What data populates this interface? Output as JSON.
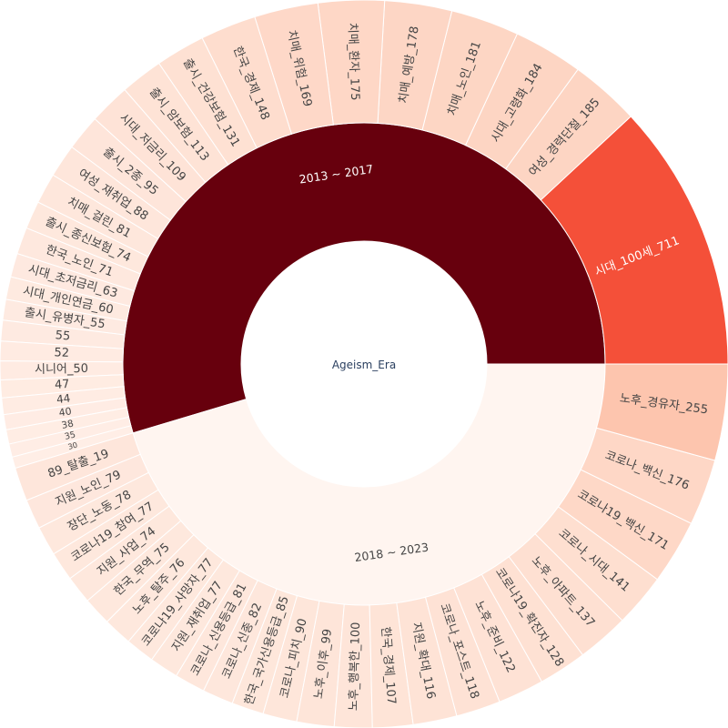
{
  "chart_data": {
    "type": "sunburst",
    "root_label": "Ageism_Era",
    "colorscale": [
      "#fff5f0",
      "#fee0d2",
      "#fcbba1",
      "#fc9272",
      "#fb6a4a",
      "#ef3b2c",
      "#cb181d",
      "#a50f15",
      "#67000d"
    ],
    "groups": [
      {
        "label": "2013 ~ 2017",
        "color": "#67000d",
        "text_color": "#ffffff",
        "children": [
          {
            "label": "시대_100세_711",
            "value": 711
          },
          {
            "label": "여성_경력단절_185",
            "value": 185
          },
          {
            "label": "시대_고령화_184",
            "value": 184
          },
          {
            "label": "치매_노인_181",
            "value": 181
          },
          {
            "label": "치매_예방_178",
            "value": 178
          },
          {
            "label": "치매_환자_175",
            "value": 175
          },
          {
            "label": "치매_위험_169",
            "value": 169
          },
          {
            "label": "한국_경제_148",
            "value": 148
          },
          {
            "label": "출시_건강보험_131",
            "value": 131
          },
          {
            "label": "출시_암보험_113",
            "value": 113
          },
          {
            "label": "시대_저금리_109",
            "value": 109
          },
          {
            "label": "출시_2종_95",
            "value": 95
          },
          {
            "label": "여성_재취업_88",
            "value": 88
          },
          {
            "label": "치매_걸린_81",
            "value": 81
          },
          {
            "label": "출시_종신보험_74",
            "value": 74
          },
          {
            "label": "한국_노인_71",
            "value": 71
          },
          {
            "label": "시대_초저금리_63",
            "value": 63
          },
          {
            "label": "시대_개인연금_60",
            "value": 60
          },
          {
            "label": "출시_유병자_55",
            "value": 55
          },
          {
            "label": "55",
            "value": 55
          },
          {
            "label": "52",
            "value": 52
          },
          {
            "label": "시니어_50",
            "value": 50
          },
          {
            "label": "47",
            "value": 47
          },
          {
            "label": "44",
            "value": 44
          },
          {
            "label": "40",
            "value": 40
          },
          {
            "label": "38",
            "value": 38
          },
          {
            "label": "35",
            "value": 35
          },
          {
            "label": "30",
            "value": 30
          }
        ]
      },
      {
        "label": "2018 ~ 2023",
        "color": "#fff5f0",
        "text_color": "#444444",
        "children": [
          {
            "label": "89_탈출_19",
            "value": 89
          },
          {
            "label": "지원_노인_79",
            "value": 79
          },
          {
            "label": "장단_노동_78",
            "value": 78
          },
          {
            "label": "코로나19_참여_77",
            "value": 77
          },
          {
            "label": "지원_사업_74",
            "value": 74
          },
          {
            "label": "한국_무역_75",
            "value": 75
          },
          {
            "label": "노후_탈주_76",
            "value": 76
          },
          {
            "label": "코로나19_사망자_77",
            "value": 77
          },
          {
            "label": "지원_재취업_77",
            "value": 77
          },
          {
            "label": "코로나_신용등급_81",
            "value": 81
          },
          {
            "label": "코로나_신종_82",
            "value": 82
          },
          {
            "label": "한국_국가신용등급_85",
            "value": 85
          },
          {
            "label": "코로나_피치_90",
            "value": 90
          },
          {
            "label": "노후_이후_99",
            "value": 99
          },
          {
            "label": "노후_행복한_100",
            "value": 100
          },
          {
            "label": "한국_경제_107",
            "value": 107
          },
          {
            "label": "지원_확대_116",
            "value": 116
          },
          {
            "label": "코로나_포스트_118",
            "value": 118
          },
          {
            "label": "노후_준비_122",
            "value": 122
          },
          {
            "label": "코로나19_확진자_128",
            "value": 128
          },
          {
            "label": "노후_아파트_137",
            "value": 137
          },
          {
            "label": "코로나_시대_141",
            "value": 141
          },
          {
            "label": "코로나19_백신_171",
            "value": 171
          },
          {
            "label": "코로나_백신_176",
            "value": 176
          },
          {
            "label": "노후_경유자_255",
            "value": 255
          }
        ]
      }
    ]
  }
}
